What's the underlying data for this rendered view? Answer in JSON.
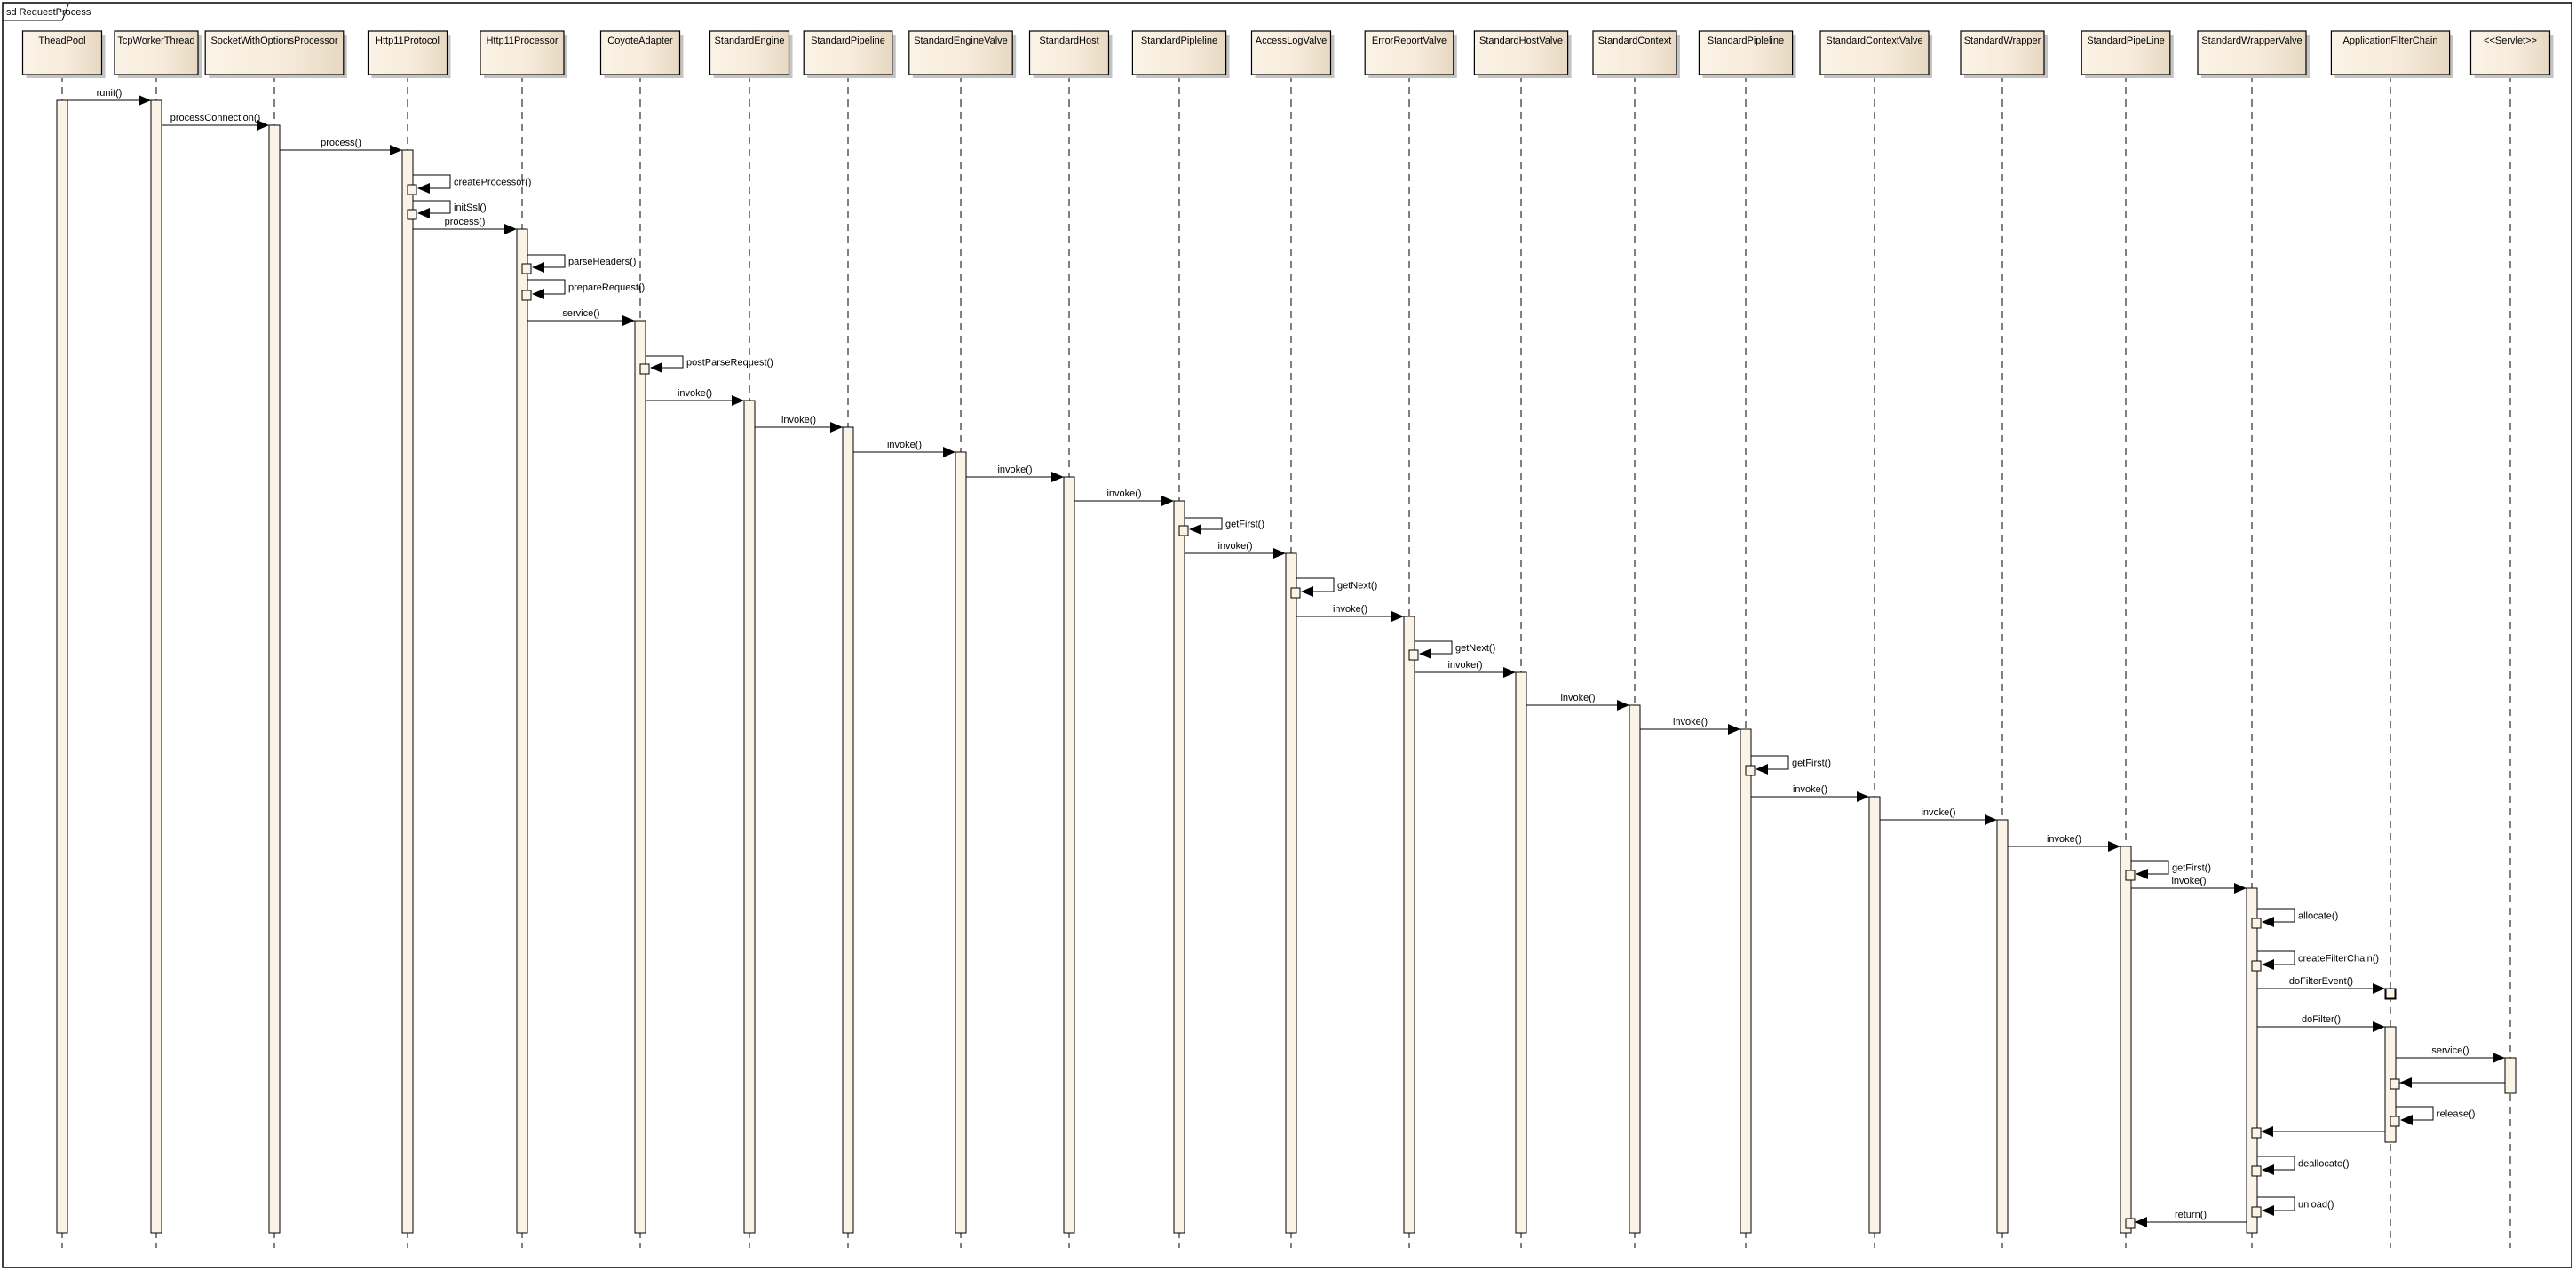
{
  "frame": {
    "label": "sd RequestProcess"
  },
  "colors": {
    "box_light": "#fbf3e6",
    "box_dark": "#e6d8c2",
    "activation": "#fbf3e6",
    "line": "#000000",
    "shadow": "#c0c0c0"
  },
  "lifelines": [
    {
      "name": "ThreadPool_label",
      "label": "TheadPool"
    },
    {
      "label": "TcpWorkerThread"
    },
    {
      "label": "SocketWithOptionsProcessor"
    },
    {
      "label": "Http11Protocol"
    },
    {
      "label": "Http11Processor"
    },
    {
      "label": "CoyoteAdapter"
    },
    {
      "label": "StandardEngine"
    },
    {
      "label": "StandardPipeline"
    },
    {
      "label": "StandardEngineValve"
    },
    {
      "label": "StandardHost"
    },
    {
      "label": "StandardPipleline"
    },
    {
      "label": "AccessLogValve"
    },
    {
      "label": "ErrorReportValve"
    },
    {
      "label": "StandardHostValve"
    },
    {
      "label": "StandardContext"
    },
    {
      "label": "StandardPipleline"
    },
    {
      "label": "StandardContextValve"
    },
    {
      "label": "StandardWrapper"
    },
    {
      "label": "StandardPipeLine"
    },
    {
      "label": "StandardWrapperValve"
    },
    {
      "label": "ApplicationFilterChain"
    },
    {
      "label": "<<Servlet>>"
    }
  ],
  "messages": [
    {
      "from": 0,
      "to": 1,
      "label": "runit()"
    },
    {
      "from": 1,
      "to": 2,
      "label": "processConnection()"
    },
    {
      "from": 2,
      "to": 3,
      "label": "process()"
    },
    {
      "from": 3,
      "to": 3,
      "label": "createProcessor()"
    },
    {
      "from": 3,
      "to": 3,
      "label": "initSsl()"
    },
    {
      "from": 3,
      "to": 4,
      "label": "process()"
    },
    {
      "from": 4,
      "to": 4,
      "label": "parseHeaders()"
    },
    {
      "from": 4,
      "to": 4,
      "label": "prepareRequest()"
    },
    {
      "from": 4,
      "to": 5,
      "label": "service()"
    },
    {
      "from": 5,
      "to": 5,
      "label": "postParseRequest()"
    },
    {
      "from": 5,
      "to": 6,
      "label": "invoke()"
    },
    {
      "from": 6,
      "to": 7,
      "label": "invoke()"
    },
    {
      "from": 7,
      "to": 8,
      "label": "invoke()"
    },
    {
      "from": 8,
      "to": 9,
      "label": "invoke()"
    },
    {
      "from": 9,
      "to": 10,
      "label": "invoke()"
    },
    {
      "from": 10,
      "to": 10,
      "label": "getFirst()"
    },
    {
      "from": 10,
      "to": 11,
      "label": "invoke()"
    },
    {
      "from": 11,
      "to": 11,
      "label": "getNext()"
    },
    {
      "from": 11,
      "to": 12,
      "label": "invoke()"
    },
    {
      "from": 12,
      "to": 12,
      "label": "getNext()"
    },
    {
      "from": 12,
      "to": 13,
      "label": "invoke()"
    },
    {
      "from": 13,
      "to": 14,
      "label": "invoke()"
    },
    {
      "from": 14,
      "to": 15,
      "label": "invoke()"
    },
    {
      "from": 15,
      "to": 15,
      "label": "getFirst()"
    },
    {
      "from": 15,
      "to": 16,
      "label": "invoke()"
    },
    {
      "from": 16,
      "to": 17,
      "label": "invoke()"
    },
    {
      "from": 17,
      "to": 18,
      "label": "invoke()"
    },
    {
      "from": 18,
      "to": 18,
      "label": "getFirst()"
    },
    {
      "from": 18,
      "to": 19,
      "label": "invoke()"
    },
    {
      "from": 19,
      "to": 19,
      "label": "allocate()"
    },
    {
      "from": 19,
      "to": 19,
      "label": "createFilterChain()"
    },
    {
      "from": 19,
      "to": 20,
      "label": "doFilterEvent()"
    },
    {
      "from": 19,
      "to": 20,
      "label": "doFilter()"
    },
    {
      "from": 20,
      "to": 21,
      "label": "service()"
    },
    {
      "from": 21,
      "to": 20,
      "label": ""
    },
    {
      "from": 20,
      "to": 20,
      "label": "release()"
    },
    {
      "from": 20,
      "to": 19,
      "label": ""
    },
    {
      "from": 19,
      "to": 19,
      "label": "deallocate()"
    },
    {
      "from": 19,
      "to": 19,
      "label": "unload()"
    },
    {
      "from": 19,
      "to": 18,
      "label": "return()"
    }
  ]
}
